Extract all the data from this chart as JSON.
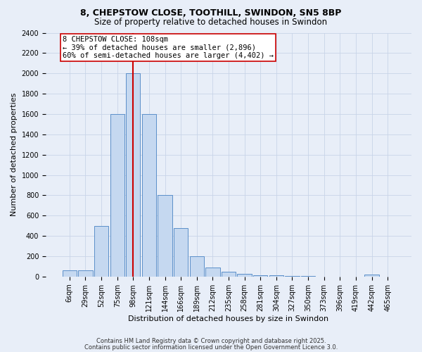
{
  "title1": "8, CHEPSTOW CLOSE, TOOTHILL, SWINDON, SN5 8BP",
  "title2": "Size of property relative to detached houses in Swindon",
  "xlabel": "Distribution of detached houses by size in Swindon",
  "ylabel": "Number of detached properties",
  "annotation_title": "8 CHEPSTOW CLOSE: 108sqm",
  "annotation_line1": "← 39% of detached houses are smaller (2,896)",
  "annotation_line2": "60% of semi-detached houses are larger (4,402) →",
  "bar_categories": [
    "6sqm",
    "29sqm",
    "52sqm",
    "75sqm",
    "98sqm",
    "121sqm",
    "144sqm",
    "166sqm",
    "189sqm",
    "212sqm",
    "235sqm",
    "258sqm",
    "281sqm",
    "304sqm",
    "327sqm",
    "350sqm",
    "373sqm",
    "396sqm",
    "419sqm",
    "442sqm",
    "465sqm"
  ],
  "bar_values": [
    60,
    60,
    500,
    1600,
    2000,
    1600,
    800,
    480,
    200,
    90,
    45,
    25,
    15,
    10,
    6,
    4,
    2,
    2,
    1,
    20,
    2
  ],
  "bar_color": "#c5d8f0",
  "bar_edge_color": "#5b8fc9",
  "vline_color": "#cc0000",
  "annotation_box_color": "#ffffff",
  "annotation_box_edge": "#cc0000",
  "ylim": [
    0,
    2400
  ],
  "yticks": [
    0,
    200,
    400,
    600,
    800,
    1000,
    1200,
    1400,
    1600,
    1800,
    2000,
    2200,
    2400
  ],
  "footer1": "Contains HM Land Registry data © Crown copyright and database right 2025.",
  "footer2": "Contains public sector information licensed under the Open Government Licence 3.0.",
  "grid_color": "#c8d4e8",
  "background_color": "#e8eef8",
  "title1_fontsize": 9,
  "title2_fontsize": 8.5,
  "xlabel_fontsize": 8,
  "ylabel_fontsize": 8,
  "tick_fontsize": 7,
  "annotation_fontsize": 7.5,
  "footer_fontsize": 6
}
